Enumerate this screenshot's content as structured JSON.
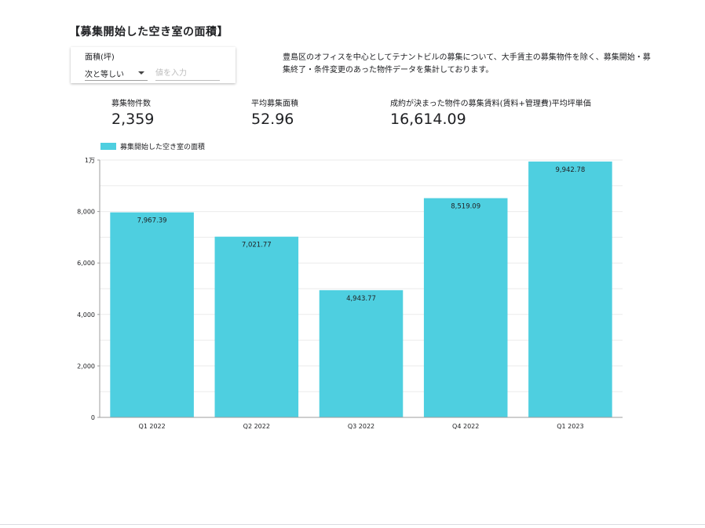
{
  "page": {
    "title": "【募集開始した空き室の面積】"
  },
  "filter": {
    "label": "面積(坪)",
    "operator": "次と等しい",
    "value": "",
    "placeholder": "値を入力"
  },
  "description": "豊島区のオフィスを中心としてテナントビルの募集について、大手賃主の募集物件を除く、募集開始・募集終了・条件変更のあった物件データを集計しております。",
  "kpis": [
    {
      "label": "募集物件数",
      "value": "2,359"
    },
    {
      "label": "平均募集面積",
      "value": "52.96"
    },
    {
      "label": "成約が決まった物件の募集賃料(賃料+管理費)平均坪単価",
      "value": "16,614.09"
    }
  ],
  "colors": {
    "bar": "#4ecfe0",
    "grid": "#ebebeb",
    "axis": "#9e9e9e"
  },
  "chart_data": {
    "type": "bar",
    "categories": [
      "Q1 2022",
      "Q2 2022",
      "Q3 2022",
      "Q4 2022",
      "Q1 2023"
    ],
    "series": [
      {
        "name": "募集開始した空き室の面積",
        "values": [
          7967.39,
          7021.77,
          4943.77,
          8519.09,
          9942.78
        ]
      }
    ],
    "data_labels": [
      "7,967.39",
      "7,021.77",
      "4,943.77",
      "8,519.09",
      "9,942.78"
    ],
    "ylim": [
      0,
      10000
    ],
    "yticks": [
      0,
      2000,
      4000,
      6000,
      8000,
      10000
    ],
    "ytick_labels": [
      "0",
      "2,000",
      "4,000",
      "6,000",
      "8,000",
      "1万"
    ],
    "grid": true,
    "legend_position": "top-left"
  }
}
